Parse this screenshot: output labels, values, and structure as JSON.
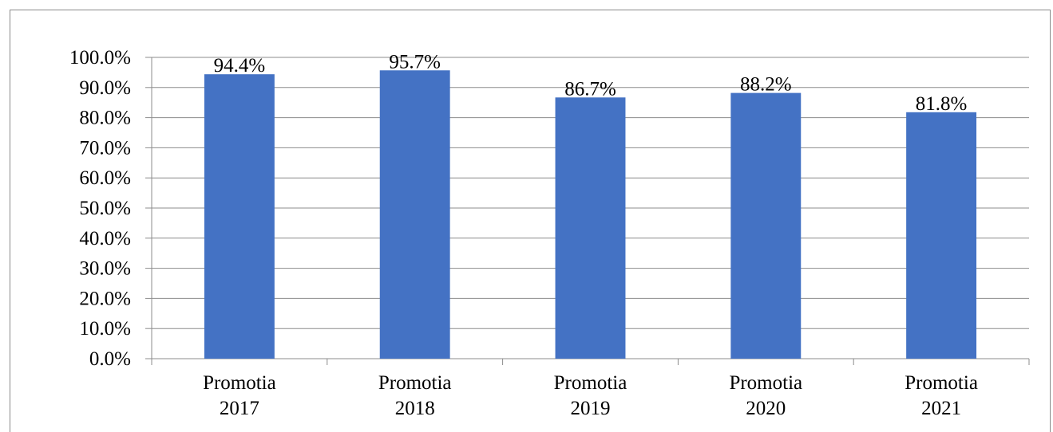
{
  "chart_data": {
    "type": "bar",
    "categories": [
      [
        "Promotia",
        "2017"
      ],
      [
        "Promotia",
        "2018"
      ],
      [
        "Promotia",
        "2019"
      ],
      [
        "Promotia",
        "2020"
      ],
      [
        "Promotia",
        "2021"
      ]
    ],
    "values": [
      94.4,
      95.7,
      86.7,
      88.2,
      81.8
    ],
    "data_labels": [
      "94.4%",
      "95.7%",
      "86.7%",
      "88.2%",
      "81.8%"
    ],
    "y_ticks": [
      "0.0%",
      "10.0%",
      "20.0%",
      "30.0%",
      "40.0%",
      "50.0%",
      "60.0%",
      "70.0%",
      "80.0%",
      "90.0%",
      "100.0%"
    ],
    "ylim": [
      0,
      100
    ],
    "title": "",
    "xlabel": "",
    "ylabel": "",
    "grid": true,
    "legend": false,
    "colors": {
      "bar": "#4472C4",
      "grid": "#8c8c8c",
      "axis": "#8c8c8c",
      "text": "#000000"
    }
  }
}
